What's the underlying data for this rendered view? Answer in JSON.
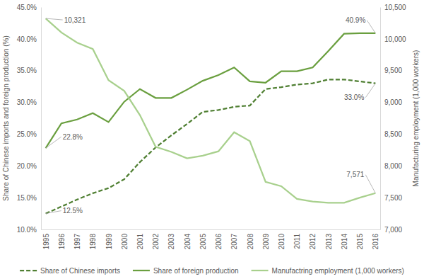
{
  "chart_data": {
    "type": "line",
    "categories": [
      "1995",
      "1996",
      "1997",
      "1998",
      "1999",
      "2000",
      "2001",
      "2002",
      "2003",
      "2004",
      "2005",
      "2006",
      "2007",
      "2008",
      "2009",
      "2010",
      "2011",
      "2012",
      "2013",
      "2014",
      "2015",
      "2016"
    ],
    "series": [
      {
        "name": "Share of Chinese imports",
        "color": "#4f7f32",
        "line_style": "dashed",
        "values": [
          12.5,
          13.6,
          14.7,
          15.7,
          16.5,
          17.9,
          20.6,
          22.9,
          24.8,
          26.6,
          28.5,
          28.8,
          29.3,
          29.5,
          32.1,
          32.4,
          32.8,
          33.0,
          33.6,
          33.6,
          33.3,
          33.0
        ]
      },
      {
        "name": "Share of foreign production",
        "color": "#6a9f3f",
        "line_style": "solid",
        "values": [
          22.8,
          26.7,
          27.3,
          28.3,
          26.9,
          30.1,
          32.1,
          30.7,
          30.7,
          32.0,
          33.4,
          34.3,
          35.5,
          33.3,
          33.1,
          34.9,
          34.9,
          35.5,
          38.1,
          40.8,
          40.9,
          40.9
        ]
      },
      {
        "name": "Manufactring employment (1,000 workers)",
        "color": "#a8d08d",
        "line_style": "solid",
        "axis": "y2",
        "values": [
          10321,
          10100,
          9940,
          9840,
          9350,
          9180,
          8800,
          8300,
          8220,
          8120,
          8160,
          8230,
          8530,
          8390,
          7750,
          7680,
          7480,
          7440,
          7420,
          7420,
          7500,
          7571
        ]
      }
    ],
    "y_label": "Share of Chinese imports and foreign production (%)",
    "y2_label": "Manufacturing employment (1,000 workers)",
    "ylim": [
      10,
      45
    ],
    "yticks": [
      {
        "value": 10,
        "label": "10.0%"
      },
      {
        "value": 15,
        "label": "15.0%"
      },
      {
        "value": 20,
        "label": "20.0%"
      },
      {
        "value": 25,
        "label": "25.0%"
      },
      {
        "value": 30,
        "label": "30.0%"
      },
      {
        "value": 35,
        "label": "35.0%"
      },
      {
        "value": 40,
        "label": "40.0%"
      },
      {
        "value": 45,
        "label": "45.0%"
      }
    ],
    "y2lim": [
      7000,
      10500
    ],
    "y2ticks": [
      {
        "value": 7000,
        "label": "7,000"
      },
      {
        "value": 7500,
        "label": "7,500"
      },
      {
        "value": 8000,
        "label": "8,000"
      },
      {
        "value": 8500,
        "label": "8,500"
      },
      {
        "value": 9000,
        "label": "9,000"
      },
      {
        "value": 9500,
        "label": "9,500"
      },
      {
        "value": 10000,
        "label": "10,000"
      },
      {
        "value": 10500,
        "label": "10,500"
      }
    ],
    "annotations": [
      {
        "text": "10,321",
        "x": "1995",
        "y": 10321,
        "axis": "y2"
      },
      {
        "text": "22.8%",
        "x": "1995",
        "y": 22.8
      },
      {
        "text": "12.5%",
        "x": "1995",
        "y": 12.5
      },
      {
        "text": "40.9%",
        "x": "2016",
        "y": 40.9
      },
      {
        "text": "33.0%",
        "x": "2016",
        "y": 33.0
      },
      {
        "text": "7,571",
        "x": "2016",
        "y": 7571,
        "axis": "y2"
      }
    ],
    "grid": false,
    "legend": "bottom"
  }
}
